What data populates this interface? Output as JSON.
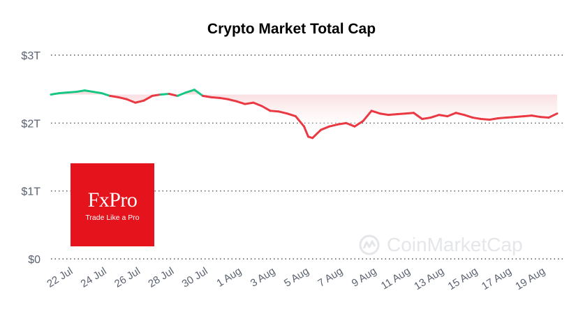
{
  "chart_data": {
    "type": "line",
    "title": "Crypto Market Total Cap",
    "y_ticks": [
      "$0",
      "$1T",
      "$2T",
      "$3T"
    ],
    "y_tick_values": [
      0,
      1,
      2,
      3
    ],
    "ylim": [
      0,
      3
    ],
    "x_ticks": [
      "22 Jul",
      "24 Jul",
      "26 Jul",
      "28 Jul",
      "30 Jul",
      "1 Aug",
      "3 Aug",
      "5 Aug",
      "7 Aug",
      "9 Aug",
      "11 Aug",
      "13 Aug",
      "15 Aug",
      "17 Aug",
      "19 Aug"
    ],
    "grid": true,
    "unit": "trillion USD",
    "colors": {
      "up": "#16c784",
      "down": "#ea3943",
      "fill": "#f9d7d9"
    },
    "series": [
      {
        "values": [
          [
            "2024-07-21T00:00",
            2.42
          ],
          [
            "2024-07-21T12:00",
            2.44
          ],
          [
            "2024-07-22T00:00",
            2.45
          ],
          [
            "2024-07-22T12:00",
            2.46
          ],
          [
            "2024-07-23T00:00",
            2.48
          ],
          [
            "2024-07-23T12:00",
            2.46
          ],
          [
            "2024-07-24T00:00",
            2.44
          ],
          [
            "2024-07-24T12:00",
            2.4
          ],
          [
            "2024-07-25T00:00",
            2.38
          ],
          [
            "2024-07-25T12:00",
            2.35
          ],
          [
            "2024-07-26T00:00",
            2.3
          ],
          [
            "2024-07-26T12:00",
            2.33
          ],
          [
            "2024-07-27T00:00",
            2.4
          ],
          [
            "2024-07-27T12:00",
            2.42
          ],
          [
            "2024-07-28T00:00",
            2.43
          ],
          [
            "2024-07-28T12:00",
            2.4
          ],
          [
            "2024-07-29T00:00",
            2.45
          ],
          [
            "2024-07-29T12:00",
            2.49
          ],
          [
            "2024-07-30T00:00",
            2.4
          ],
          [
            "2024-07-30T12:00",
            2.38
          ],
          [
            "2024-07-31T00:00",
            2.37
          ],
          [
            "2024-07-31T12:00",
            2.35
          ],
          [
            "2024-08-01T00:00",
            2.32
          ],
          [
            "2024-08-01T12:00",
            2.28
          ],
          [
            "2024-08-02T00:00",
            2.3
          ],
          [
            "2024-08-02T12:00",
            2.25
          ],
          [
            "2024-08-03T00:00",
            2.18
          ],
          [
            "2024-08-03T12:00",
            2.17
          ],
          [
            "2024-08-04T00:00",
            2.14
          ],
          [
            "2024-08-04T12:00",
            2.1
          ],
          [
            "2024-08-05T00:00",
            1.95
          ],
          [
            "2024-08-05T06:00",
            1.8
          ],
          [
            "2024-08-05T12:00",
            1.78
          ],
          [
            "2024-08-06T00:00",
            1.9
          ],
          [
            "2024-08-06T12:00",
            1.95
          ],
          [
            "2024-08-07T00:00",
            1.98
          ],
          [
            "2024-08-07T12:00",
            2.0
          ],
          [
            "2024-08-08T00:00",
            1.95
          ],
          [
            "2024-08-08T12:00",
            2.03
          ],
          [
            "2024-08-09T00:00",
            2.18
          ],
          [
            "2024-08-09T12:00",
            2.14
          ],
          [
            "2024-08-10T00:00",
            2.12
          ],
          [
            "2024-08-10T12:00",
            2.13
          ],
          [
            "2024-08-11T00:00",
            2.14
          ],
          [
            "2024-08-11T12:00",
            2.15
          ],
          [
            "2024-08-12T00:00",
            2.06
          ],
          [
            "2024-08-12T12:00",
            2.08
          ],
          [
            "2024-08-13T00:00",
            2.12
          ],
          [
            "2024-08-13T12:00",
            2.1
          ],
          [
            "2024-08-14T00:00",
            2.15
          ],
          [
            "2024-08-14T12:00",
            2.12
          ],
          [
            "2024-08-15T00:00",
            2.08
          ],
          [
            "2024-08-15T12:00",
            2.06
          ],
          [
            "2024-08-16T00:00",
            2.05
          ],
          [
            "2024-08-16T12:00",
            2.07
          ],
          [
            "2024-08-17T00:00",
            2.08
          ],
          [
            "2024-08-17T12:00",
            2.09
          ],
          [
            "2024-08-18T00:00",
            2.1
          ],
          [
            "2024-08-18T12:00",
            2.11
          ],
          [
            "2024-08-19T00:00",
            2.09
          ],
          [
            "2024-08-19T12:00",
            2.08
          ],
          [
            "2024-08-20T00:00",
            2.14
          ]
        ]
      }
    ]
  },
  "logo": {
    "name": "FxPro",
    "tagline": "Trade Like a Pro"
  },
  "watermark": {
    "text": "CoinMarketCap"
  }
}
